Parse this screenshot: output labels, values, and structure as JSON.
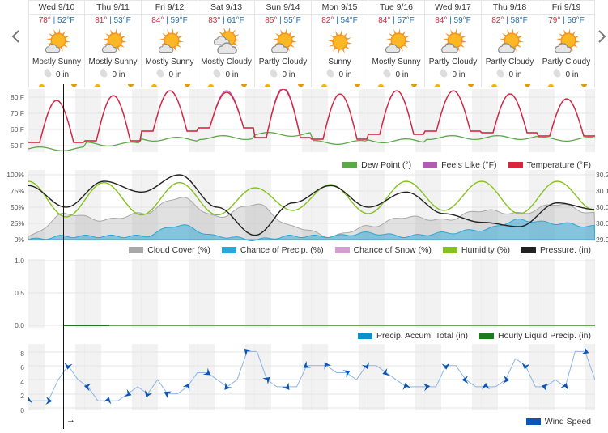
{
  "nav": {
    "prev_icon": "chevron-left-icon",
    "next_icon": "chevron-right-icon"
  },
  "days": [
    {
      "name": "Wed 9/10",
      "hi": "78°",
      "lo": "52°F",
      "icon": "mostly-sunny",
      "condition": "Mostly Sunny",
      "precip": "0 in"
    },
    {
      "name": "Thu 9/11",
      "hi": "81°",
      "lo": "53°F",
      "icon": "mostly-sunny",
      "condition": "Mostly Sunny",
      "precip": "0 in"
    },
    {
      "name": "Fri 9/12",
      "hi": "84°",
      "lo": "59°F",
      "icon": "mostly-sunny",
      "condition": "Mostly Sunny",
      "precip": "0 in"
    },
    {
      "name": "Sat 9/13",
      "hi": "83°",
      "lo": "61°F",
      "icon": "mostly-cloudy",
      "condition": "Mostly Cloudy",
      "precip": "0 in"
    },
    {
      "name": "Sun 9/14",
      "hi": "85°",
      "lo": "55°F",
      "icon": "partly-cloudy",
      "condition": "Partly Cloudy",
      "precip": "0 in"
    },
    {
      "name": "Mon 9/15",
      "hi": "82°",
      "lo": "54°F",
      "icon": "sunny",
      "condition": "Sunny",
      "precip": "0 in"
    },
    {
      "name": "Tue 9/16",
      "hi": "84°",
      "lo": "57°F",
      "icon": "mostly-sunny",
      "condition": "Mostly Sunny",
      "precip": "0 in"
    },
    {
      "name": "Wed 9/17",
      "hi": "84°",
      "lo": "59°F",
      "icon": "partly-cloudy",
      "condition": "Partly Cloudy",
      "precip": "0 in"
    },
    {
      "name": "Thu 9/18",
      "hi": "82°",
      "lo": "58°F",
      "icon": "partly-cloudy",
      "condition": "Partly Cloudy",
      "precip": "0 in"
    },
    {
      "name": "Fri 9/19",
      "hi": "79°",
      "lo": "56°F",
      "icon": "partly-cloudy",
      "condition": "Partly Cloudy",
      "precip": "0 in"
    }
  ],
  "colors": {
    "temperature": "#d7263d",
    "feels_like": "#b05cb0",
    "dew_point": "#5ca84a",
    "cloud_cover": "#a8a8a8",
    "chance_precip": "#29a8d8",
    "chance_snow": "#d59ed0",
    "humidity": "#86c21e",
    "pressure": "#222222",
    "precip_accum": "#0b8fc9",
    "hourly_liquid": "#1d7a1d",
    "wind": "#0a55b5"
  },
  "chart_data": [
    {
      "type": "line",
      "title": "Temperature",
      "ylabel": "F",
      "yticks": [
        "80 F",
        "70 F",
        "60 F",
        "50 F"
      ],
      "ylim": [
        45,
        85
      ],
      "categories": [
        "Wed 9/10",
        "Thu 9/11",
        "Fri 9/12",
        "Sat 9/13",
        "Sun 9/14",
        "Mon 9/15",
        "Tue 9/16",
        "Wed 9/17",
        "Thu 9/18",
        "Fri 9/19"
      ],
      "series": [
        {
          "name": "Temperature (°F)",
          "highs": [
            78,
            81,
            84,
            83,
            85,
            82,
            84,
            84,
            82,
            79
          ],
          "lows": [
            52,
            53,
            59,
            61,
            55,
            54,
            57,
            59,
            58,
            56
          ]
        },
        {
          "name": "Feels Like (°F)",
          "highs": [
            78,
            81,
            84,
            84,
            86,
            82,
            84,
            84,
            82,
            79
          ]
        },
        {
          "name": "Dew Point (°)",
          "values": [
            48,
            51,
            54,
            55,
            57,
            52,
            53,
            55,
            55,
            54
          ]
        }
      ],
      "legend": [
        "Dew Point (°)",
        "Feels Like (°F)",
        "Temperature (°F)"
      ],
      "legend_position": "bottom-right"
    },
    {
      "type": "area",
      "title": "Humidity / Clouds / Pressure",
      "yticks_left": [
        "100%",
        "75%",
        "50%",
        "25%",
        "0%"
      ],
      "yticks_right": [
        "30.2",
        "30.1",
        "30.0",
        "30.0",
        "29.9"
      ],
      "series": [
        {
          "name": "Cloud Cover (%)",
          "values": [
            5,
            40,
            30,
            40,
            65,
            35,
            55,
            20,
            5,
            20,
            35,
            30,
            45,
            40,
            55,
            40
          ]
        },
        {
          "name": "Chance of Precip. (%)",
          "values": [
            0,
            5,
            5,
            5,
            22,
            5,
            0,
            5,
            5,
            10,
            5,
            10,
            15,
            30,
            25,
            20
          ]
        },
        {
          "name": "Chance of Snow (%)",
          "values": [
            0,
            0,
            0,
            0,
            0,
            0,
            0,
            0,
            0,
            0,
            0,
            0,
            0,
            0,
            0,
            0
          ]
        },
        {
          "name": "Humidity (%)",
          "values": [
            90,
            35,
            88,
            38,
            88,
            38,
            80,
            45,
            85,
            40,
            90,
            45,
            90,
            40,
            90,
            45
          ]
        },
        {
          "name": "Pressure. (in)",
          "values": [
            30.15,
            30.05,
            30.17,
            30.12,
            30.2,
            30.05,
            29.92,
            30.07,
            30.15,
            30.05,
            30.12,
            30.02,
            29.98,
            29.96,
            30.07,
            30.04
          ]
        }
      ],
      "legend": [
        "Cloud Cover (%)",
        "Chance of Precip. (%)",
        "Chance of Snow (%)",
        "Humidity (%)",
        "Pressure. (in)"
      ]
    },
    {
      "type": "line",
      "title": "Precipitation",
      "yticks": [
        "1.0",
        "0.5",
        "0.0"
      ],
      "ylim": [
        0,
        1
      ],
      "series": [
        {
          "name": "Precip. Accum. Total (in)",
          "values": [
            0,
            0,
            0,
            0,
            0,
            0,
            0,
            0,
            0,
            0
          ]
        },
        {
          "name": "Hourly Liquid Precip. (in)",
          "values": [
            0,
            0,
            0,
            0,
            0,
            0,
            0,
            0,
            0,
            0
          ]
        }
      ],
      "legend": [
        "Precip. Accum. Total (in)",
        "Hourly Liquid Precip. (in)"
      ]
    },
    {
      "type": "line",
      "title": "Wind",
      "yticks": [
        "8",
        "6",
        "4",
        "2",
        "0"
      ],
      "ylim": [
        0,
        9
      ],
      "series": [
        {
          "name": "Wind Speed",
          "values": [
            1,
            1,
            1,
            4,
            6,
            4,
            3,
            1,
            1,
            1,
            2,
            3,
            2,
            4,
            2,
            2,
            3,
            5,
            5,
            4,
            3,
            4,
            8,
            8,
            4,
            3,
            3,
            3,
            6,
            6,
            6,
            5,
            5,
            4,
            6,
            6,
            5,
            4,
            3,
            3,
            3,
            3,
            6,
            6,
            4,
            3,
            3,
            3,
            4,
            7,
            6,
            3,
            3,
            4,
            3,
            8,
            8,
            4
          ]
        }
      ],
      "legend": [
        "Wind Speed"
      ]
    }
  ],
  "legends": {
    "temp": [
      {
        "label": "Dew Point (°)",
        "color": "#5ca84a"
      },
      {
        "label": "Feels Like (°F)",
        "color": "#b05cb0"
      },
      {
        "label": "Temperature (°F)",
        "color": "#d7263d"
      }
    ],
    "atmo": [
      {
        "label": "Cloud Cover (%)",
        "color": "#a8a8a8"
      },
      {
        "label": "Chance of Precip. (%)",
        "color": "#29a8d8"
      },
      {
        "label": "Chance of Snow (%)",
        "color": "#d59ed0"
      },
      {
        "label": "Humidity (%)",
        "color": "#86c21e"
      },
      {
        "label": "Pressure. (in)",
        "color": "#222222"
      }
    ],
    "precip": [
      {
        "label": "Precip. Accum. Total (in)",
        "color": "#0b8fc9"
      },
      {
        "label": "Hourly Liquid Precip. (in)",
        "color": "#1d7a1d"
      }
    ],
    "wind": [
      {
        "label": "Wind Speed",
        "color": "#0a55b5"
      }
    ]
  },
  "axes": {
    "temp": [
      "80 F",
      "70 F",
      "60 F",
      "50 F"
    ],
    "atmo_left": [
      "100%",
      "75%",
      "50%",
      "25%",
      "0%"
    ],
    "atmo_right": [
      "30.2",
      "30.1",
      "30.0",
      "30.0",
      "29.9"
    ],
    "precip": [
      "1.0",
      "0.5",
      "0.0"
    ],
    "wind": [
      "8",
      "6",
      "4",
      "2",
      "0"
    ]
  },
  "wind_direction_label": "→"
}
